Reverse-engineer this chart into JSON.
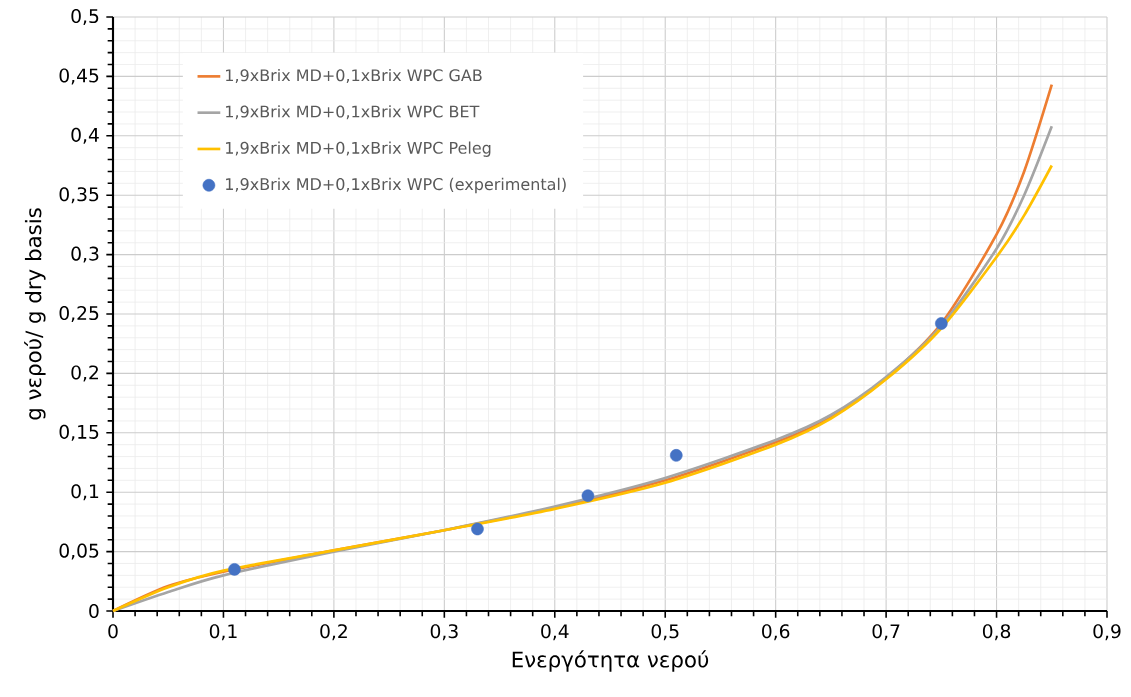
{
  "chart_data": {
    "type": "line",
    "xlabel": "Ενεργότητα νερού",
    "ylabel": "g νερού/ g dry basis",
    "xlim": [
      0,
      0.9
    ],
    "ylim": [
      0,
      0.5
    ],
    "xticks": [
      0,
      {
        "value": 0.1,
        "label": "0,1"
      },
      {
        "value": 0.2,
        "label": "0,2"
      },
      {
        "value": 0.3,
        "label": "0,3"
      },
      {
        "value": 0.4,
        "label": "0,4"
      },
      {
        "value": 0.5,
        "label": "0,5"
      },
      {
        "value": 0.6,
        "label": "0,6"
      },
      {
        "value": 0.7,
        "label": "0,7"
      },
      {
        "value": 0.8,
        "label": "0,8"
      },
      {
        "value": 0.9,
        "label": "0,9"
      }
    ],
    "yticks": [
      0,
      {
        "value": 0.05,
        "label": "0,05"
      },
      {
        "value": 0.1,
        "label": "0,1"
      },
      {
        "value": 0.15,
        "label": "0,15"
      },
      {
        "value": 0.2,
        "label": "0,2"
      },
      {
        "value": 0.25,
        "label": "0,25"
      },
      {
        "value": 0.3,
        "label": "0,3"
      },
      {
        "value": 0.35,
        "label": "0,35"
      },
      {
        "value": 0.4,
        "label": "0,4"
      },
      {
        "value": 0.45,
        "label": "0,45"
      },
      {
        "value": 0.5,
        "label": "0,5"
      }
    ],
    "grid": true,
    "legend": "top left",
    "series": [
      {
        "name": "1,9xBrix MD+0,1xBrix WPC GAB",
        "marker": "none",
        "line_style": "solid",
        "color": "#ed7d31",
        "x": [
          0,
          0.05,
          0.1,
          0.2,
          0.3,
          0.4,
          0.5,
          0.6,
          0.65,
          0.7,
          0.75,
          0.8,
          0.825,
          0.85
        ],
        "values": [
          0,
          0.021,
          0.033,
          0.051,
          0.068,
          0.087,
          0.11,
          0.142,
          0.163,
          0.196,
          0.242,
          0.317,
          0.37,
          0.443
        ]
      },
      {
        "name": "1,9xBrix MD+0,1xBrix WPC BET",
        "marker": "none",
        "line_style": "solid",
        "color": "#a5a5a5",
        "x": [
          0,
          0.05,
          0.1,
          0.2,
          0.3,
          0.4,
          0.5,
          0.6,
          0.65,
          0.7,
          0.75,
          0.8,
          0.825,
          0.85
        ],
        "values": [
          0,
          0.016,
          0.03,
          0.05,
          0.068,
          0.088,
          0.112,
          0.144,
          0.165,
          0.197,
          0.24,
          0.305,
          0.35,
          0.408
        ]
      },
      {
        "name": "1,9xBrix MD+0,1xBrix WPC Peleg",
        "marker": "none",
        "line_style": "solid",
        "color": "#ffc000",
        "x": [
          0,
          0.05,
          0.1,
          0.2,
          0.3,
          0.4,
          0.5,
          0.6,
          0.65,
          0.7,
          0.75,
          0.8,
          0.825,
          0.85
        ],
        "values": [
          0,
          0.02,
          0.034,
          0.051,
          0.068,
          0.086,
          0.108,
          0.14,
          0.162,
          0.195,
          0.238,
          0.298,
          0.333,
          0.375
        ]
      },
      {
        "name": "1,9xBrix MD+0,1xBrix WPC (experimental)",
        "type": "scatter",
        "marker": "circle",
        "color": "#4472c4",
        "x": [
          0.11,
          0.33,
          0.43,
          0.51,
          0.75
        ],
        "values": [
          0.035,
          0.069,
          0.097,
          0.131,
          0.242
        ]
      }
    ]
  }
}
